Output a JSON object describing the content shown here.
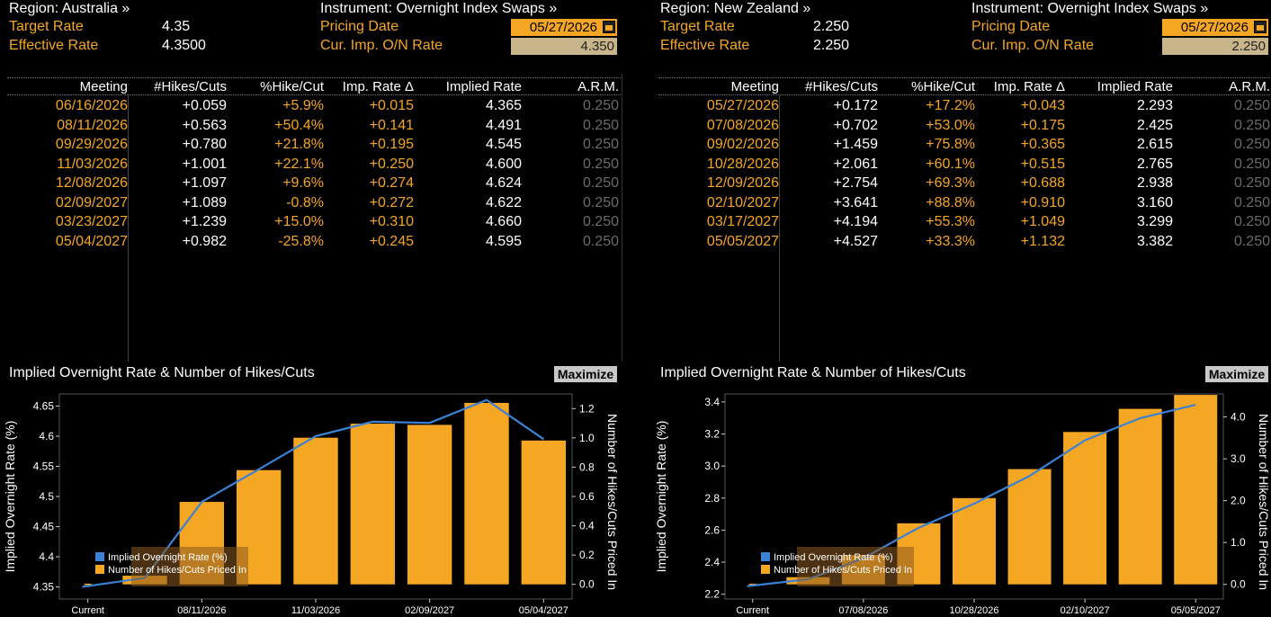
{
  "panels": [
    {
      "region_label": "Region: Australia »",
      "instrument_label": "Instrument: Overnight Index Swaps »",
      "target_rate_label": "Target Rate",
      "target_rate": "4.35",
      "effective_rate_label": "Effective Rate",
      "effective_rate": "4.3500",
      "pricing_date_label": "Pricing Date",
      "pricing_date": "05/27/2026",
      "cur_imp_label": "Cur. Imp. O/N Rate",
      "cur_imp_rate": "4.350",
      "columns": [
        "Meeting",
        "#Hikes/Cuts",
        "%Hike/Cut",
        "Imp. Rate Δ",
        "Implied Rate",
        "A.R.M."
      ],
      "rows": [
        {
          "meeting": "06/16/2026",
          "hikes": "+0.059",
          "pct": "+5.9%",
          "delta": "+0.015",
          "implied": "4.365",
          "arm": "0.250"
        },
        {
          "meeting": "08/11/2026",
          "hikes": "+0.563",
          "pct": "+50.4%",
          "delta": "+0.141",
          "implied": "4.491",
          "arm": "0.250"
        },
        {
          "meeting": "09/29/2026",
          "hikes": "+0.780",
          "pct": "+21.8%",
          "delta": "+0.195",
          "implied": "4.545",
          "arm": "0.250"
        },
        {
          "meeting": "11/03/2026",
          "hikes": "+1.001",
          "pct": "+22.1%",
          "delta": "+0.250",
          "implied": "4.600",
          "arm": "0.250"
        },
        {
          "meeting": "12/08/2026",
          "hikes": "+1.097",
          "pct": "+9.6%",
          "delta": "+0.274",
          "implied": "4.624",
          "arm": "0.250"
        },
        {
          "meeting": "02/09/2027",
          "hikes": "+1.089",
          "pct": "-0.8%",
          "delta": "+0.272",
          "implied": "4.622",
          "arm": "0.250"
        },
        {
          "meeting": "03/23/2027",
          "hikes": "+1.239",
          "pct": "+15.0%",
          "delta": "+0.310",
          "implied": "4.660",
          "arm": "0.250"
        },
        {
          "meeting": "05/04/2027",
          "hikes": "+0.982",
          "pct": "-25.8%",
          "delta": "+0.245",
          "implied": "4.595",
          "arm": "0.250"
        }
      ],
      "chart_title": "Implied Overnight Rate & Number of Hikes/Cuts",
      "maximize_label": "Maximize"
    },
    {
      "region_label": "Region: New Zealand »",
      "instrument_label": "Instrument: Overnight Index Swaps »",
      "target_rate_label": "Target Rate",
      "target_rate": "2.250",
      "effective_rate_label": "Effective Rate",
      "effective_rate": "2.250",
      "pricing_date_label": "Pricing Date",
      "pricing_date": "05/27/2026",
      "cur_imp_label": "Cur. Imp. O/N Rate",
      "cur_imp_rate": "2.250",
      "columns": [
        "Meeting",
        "#Hikes/Cuts",
        "%Hike/Cut",
        "Imp. Rate Δ",
        "Implied Rate",
        "A.R.M."
      ],
      "rows": [
        {
          "meeting": "05/27/2026",
          "hikes": "+0.172",
          "pct": "+17.2%",
          "delta": "+0.043",
          "implied": "2.293",
          "arm": "0.250"
        },
        {
          "meeting": "07/08/2026",
          "hikes": "+0.702",
          "pct": "+53.0%",
          "delta": "+0.175",
          "implied": "2.425",
          "arm": "0.250"
        },
        {
          "meeting": "09/02/2026",
          "hikes": "+1.459",
          "pct": "+75.8%",
          "delta": "+0.365",
          "implied": "2.615",
          "arm": "0.250"
        },
        {
          "meeting": "10/28/2026",
          "hikes": "+2.061",
          "pct": "+60.1%",
          "delta": "+0.515",
          "implied": "2.765",
          "arm": "0.250"
        },
        {
          "meeting": "12/09/2026",
          "hikes": "+2.754",
          "pct": "+69.3%",
          "delta": "+0.688",
          "implied": "2.938",
          "arm": "0.250"
        },
        {
          "meeting": "02/10/2027",
          "hikes": "+3.641",
          "pct": "+88.8%",
          "delta": "+0.910",
          "implied": "3.160",
          "arm": "0.250"
        },
        {
          "meeting": "03/17/2027",
          "hikes": "+4.194",
          "pct": "+55.3%",
          "delta": "+1.049",
          "implied": "3.299",
          "arm": "0.250"
        },
        {
          "meeting": "05/05/2027",
          "hikes": "+4.527",
          "pct": "+33.3%",
          "delta": "+1.132",
          "implied": "3.382",
          "arm": "0.250"
        }
      ],
      "chart_title": "Implied Overnight Rate & Number of Hikes/Cuts",
      "maximize_label": "Maximize"
    }
  ],
  "colors": {
    "accent": "#f5a623",
    "line": "#3b82d4",
    "grey": "#6b6b6b",
    "background": "#000000"
  },
  "chart_data": [
    {
      "type": "bar",
      "categories": [
        "Current",
        "06/16/2026",
        "08/11/2026",
        "09/29/2026",
        "11/03/2026",
        "12/08/2026",
        "02/09/2027",
        "03/23/2027",
        "05/04/2027"
      ],
      "x_tick_labels": [
        "Current",
        "08/11/2026",
        "11/03/2026",
        "02/09/2027",
        "05/04/2027"
      ],
      "series": [
        {
          "name": "Implied Overnight Rate (%)",
          "type": "line",
          "axis": "left",
          "values": [
            4.35,
            4.365,
            4.491,
            4.545,
            4.6,
            4.624,
            4.622,
            4.66,
            4.595
          ]
        },
        {
          "name": "Number of Hikes/Cuts Priced In",
          "type": "bar",
          "axis": "right",
          "values": [
            0,
            0.059,
            0.563,
            0.78,
            1.001,
            1.097,
            1.089,
            1.239,
            0.982
          ]
        }
      ],
      "ylabel": "Implied Overnight Rate (%)",
      "y2label": "Number of Hikes/Cuts Priced In",
      "ylim": [
        4.33,
        4.67
      ],
      "yticks": [
        "4.35",
        "4.4",
        "4.45",
        "4.5",
        "4.55",
        "4.6",
        "4.65"
      ],
      "y2lim": [
        -0.1,
        1.3
      ],
      "y2ticks": [
        "0.0",
        "0.2",
        "0.4",
        "0.6",
        "0.8",
        "1.0",
        "1.2"
      ],
      "legend": "bottom-left"
    },
    {
      "type": "bar",
      "categories": [
        "Current",
        "05/27/2026",
        "07/08/2026",
        "09/02/2026",
        "10/28/2026",
        "12/09/2026",
        "02/10/2027",
        "03/17/2027",
        "05/05/2027"
      ],
      "x_tick_labels": [
        "Current",
        "07/08/2026",
        "10/28/2026",
        "02/10/2027",
        "05/05/2027"
      ],
      "series": [
        {
          "name": "Implied Overnight Rate (%)",
          "type": "line",
          "axis": "left",
          "values": [
            2.25,
            2.293,
            2.425,
            2.615,
            2.765,
            2.938,
            3.16,
            3.299,
            3.382
          ]
        },
        {
          "name": "Number of Hikes/Cuts Priced In",
          "type": "bar",
          "axis": "right",
          "values": [
            0,
            0.172,
            0.702,
            1.459,
            2.061,
            2.754,
            3.641,
            4.194,
            4.527
          ]
        }
      ],
      "ylabel": "Implied Overnight Rate (%)",
      "y2label": "Number of Hikes/Cuts Priced In",
      "ylim": [
        2.17,
        3.45
      ],
      "yticks": [
        "2.2",
        "2.4",
        "2.6",
        "2.8",
        "3.0",
        "3.2",
        "3.4"
      ],
      "y2lim": [
        -0.35,
        4.55
      ],
      "y2ticks": [
        "0.0",
        "1.0",
        "2.0",
        "3.0",
        "4.0"
      ],
      "legend": "bottom-left"
    }
  ]
}
